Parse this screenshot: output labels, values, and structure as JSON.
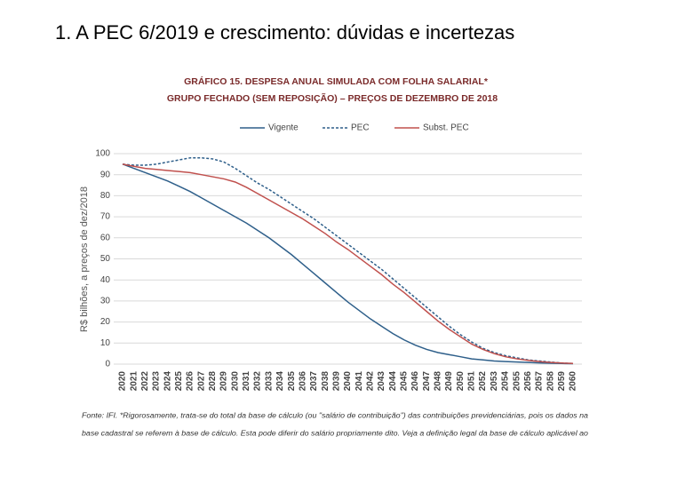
{
  "slide_title": "1. A PEC 6/2019 e crescimento: dúvidas e incertezas",
  "chart_data": {
    "type": "line",
    "title": "GRÁFICO 15. DESPESA ANUAL SIMULADA COM FOLHA SALARIAL*",
    "subtitle": "GRUPO FECHADO (SEM REPOSIÇÃO) – PREÇOS DE DEZEMBRO DE 2018",
    "y_label": "R$ bilhões, a preços de dez/2018",
    "categories": [
      "2020",
      "2021",
      "2022",
      "2023",
      "2024",
      "2025",
      "2026",
      "2027",
      "2028",
      "2029",
      "2030",
      "2031",
      "2032",
      "2033",
      "2034",
      "2035",
      "2036",
      "2037",
      "2038",
      "2039",
      "2040",
      "2041",
      "2042",
      "2043",
      "2044",
      "2045",
      "2046",
      "2047",
      "2048",
      "2049",
      "2050",
      "2051",
      "2052",
      "2053",
      "2054",
      "2055",
      "2056",
      "2057",
      "2058",
      "2059",
      "2060"
    ],
    "series": [
      {
        "name": "Vigente",
        "color": "#2e5f8a",
        "dashed": false,
        "values": [
          95,
          93,
          91,
          89,
          87,
          84.5,
          82,
          79,
          76,
          73,
          70,
          67,
          63.5,
          60,
          56,
          52,
          47.5,
          43,
          38.5,
          34,
          29.5,
          25.5,
          21.5,
          18,
          14.5,
          11.5,
          9,
          7,
          5.5,
          4.5,
          3.5,
          2.5,
          2,
          1.5,
          1.2,
          1,
          0.8,
          0.6,
          0.4,
          0.3,
          0.2
        ]
      },
      {
        "name": "PEC",
        "color": "#2e5f8a",
        "dashed": true,
        "values": [
          95,
          94.5,
          94.5,
          95,
          96,
          97,
          98,
          98,
          97.5,
          96,
          93,
          89.5,
          86,
          83,
          79.5,
          76,
          72.5,
          69,
          65,
          61,
          57,
          53,
          49,
          45,
          40.5,
          36,
          31.5,
          27,
          22.5,
          18,
          14,
          10.5,
          7.5,
          5.5,
          4,
          3,
          2,
          1.5,
          1,
          0.5,
          0.3
        ]
      },
      {
        "name": "Subst. PEC",
        "color": "#c0504d",
        "dashed": false,
        "values": [
          95,
          94,
          93,
          92.5,
          92,
          91.5,
          91,
          90,
          89,
          88,
          86.5,
          84,
          81,
          78,
          75,
          72,
          69,
          65.5,
          62,
          58,
          54.5,
          50.5,
          46.5,
          42.5,
          38,
          34,
          29.5,
          25,
          20.5,
          16.5,
          13,
          9.5,
          7,
          5,
          3.5,
          2.5,
          1.8,
          1.2,
          0.8,
          0.5,
          0.3
        ]
      }
    ],
    "ylim": [
      0,
      100
    ],
    "yticks": [
      0,
      10,
      20,
      30,
      40,
      50,
      60,
      70,
      80,
      90,
      100
    ],
    "grid": true,
    "legend": "top",
    "note_lines": [
      "Fonte: IFI. *Rigorosamente, trata-se do total da base de cálculo (ou \"salário de contribuição\") das contribuições previdenciárias, pois os dados na",
      "base cadastral se referem à base de cálculo. Esta pode diferir do salário propriamente dito. Veja a definição legal da base de cálculo aplicável ao"
    ]
  }
}
